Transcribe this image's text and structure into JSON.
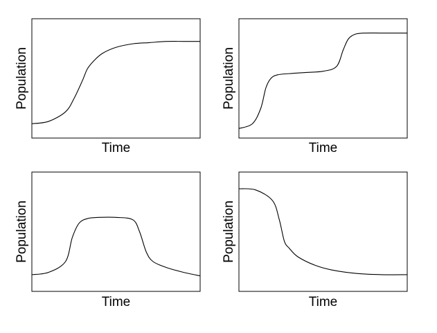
{
  "chart_data": [
    {
      "type": "line",
      "title": "",
      "xlabel": "Time",
      "ylabel": "Population",
      "xlim": [
        0,
        1
      ],
      "ylim": [
        0,
        1
      ],
      "grid": false,
      "show_ticks": false,
      "series": [
        {
          "x": [
            0.0,
            0.1,
            0.2,
            0.25,
            0.3,
            0.33,
            0.37,
            0.42,
            0.5,
            0.6,
            0.7,
            0.8,
            0.9,
            1.0
          ],
          "y": [
            0.12,
            0.14,
            0.22,
            0.33,
            0.48,
            0.58,
            0.65,
            0.71,
            0.76,
            0.79,
            0.8,
            0.81,
            0.81,
            0.81
          ]
        }
      ]
    },
    {
      "type": "line",
      "title": "",
      "xlabel": "Time",
      "ylabel": "Population",
      "xlim": [
        0,
        1
      ],
      "ylim": [
        0,
        1
      ],
      "grid": false,
      "show_ticks": false,
      "series": [
        {
          "x": [
            0.0,
            0.08,
            0.13,
            0.16,
            0.19,
            0.23,
            0.3,
            0.4,
            0.5,
            0.58,
            0.62,
            0.65,
            0.69,
            0.75,
            0.85,
            1.0
          ],
          "y": [
            0.08,
            0.12,
            0.25,
            0.42,
            0.5,
            0.53,
            0.54,
            0.55,
            0.56,
            0.6,
            0.74,
            0.83,
            0.87,
            0.88,
            0.88,
            0.88
          ]
        }
      ]
    },
    {
      "type": "line",
      "title": "",
      "xlabel": "Time",
      "ylabel": "Population",
      "xlim": [
        0,
        1
      ],
      "ylim": [
        0,
        1
      ],
      "grid": false,
      "show_ticks": false,
      "series": [
        {
          "x": [
            0.0,
            0.1,
            0.2,
            0.24,
            0.28,
            0.33,
            0.4,
            0.5,
            0.6,
            0.64,
            0.68,
            0.72,
            0.8,
            0.9,
            1.0
          ],
          "y": [
            0.14,
            0.16,
            0.25,
            0.45,
            0.57,
            0.61,
            0.62,
            0.62,
            0.6,
            0.5,
            0.33,
            0.25,
            0.2,
            0.16,
            0.13
          ]
        }
      ]
    },
    {
      "type": "line",
      "title": "",
      "xlabel": "Time",
      "ylabel": "Population",
      "xlim": [
        0,
        1
      ],
      "ylim": [
        0,
        1
      ],
      "grid": false,
      "show_ticks": false,
      "series": [
        {
          "x": [
            0.0,
            0.1,
            0.2,
            0.24,
            0.27,
            0.3,
            0.35,
            0.45,
            0.55,
            0.7,
            0.85,
            1.0
          ],
          "y": [
            0.86,
            0.85,
            0.76,
            0.6,
            0.42,
            0.36,
            0.29,
            0.22,
            0.18,
            0.15,
            0.14,
            0.14
          ]
        }
      ]
    }
  ]
}
